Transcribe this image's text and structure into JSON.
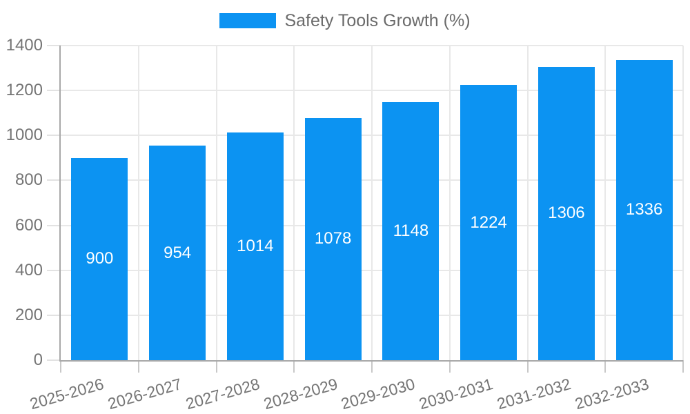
{
  "chart_data": {
    "type": "bar",
    "title": "",
    "legend": "Safety Tools Growth (%)",
    "legend_position": "top",
    "categories": [
      "2025-2026",
      "2026-2027",
      "2027-2028",
      "2028-2029",
      "2029-2030",
      "2030-2031",
      "2031-2032",
      "2032-2033"
    ],
    "values": [
      900,
      954,
      1014,
      1078,
      1148,
      1224,
      1306,
      1336
    ],
    "series": [
      {
        "name": "Safety Tools Growth (%)",
        "values": [
          900,
          954,
          1014,
          1078,
          1148,
          1224,
          1306,
          1336
        ]
      }
    ],
    "xlabel": "",
    "ylabel": "",
    "ylim": [
      0,
      1400
    ],
    "ytick_step": 200,
    "ytick_labels": [
      "0",
      "200",
      "400",
      "600",
      "800",
      "1000",
      "1200",
      "1400"
    ],
    "grid": true,
    "bar_value_labels_shown": true,
    "x_label_rotation_deg": -16,
    "colors": {
      "bar": "#0c93f2",
      "grid": "#e8e8e8",
      "axis": "#a8a8a8",
      "x_tick": "#c8c8c8",
      "y_tick": "#e2e2e2",
      "tick_label": "#757575",
      "legend_text": "#6b6b6b",
      "value_label": "#ffffff",
      "background": "#ffffff"
    }
  }
}
